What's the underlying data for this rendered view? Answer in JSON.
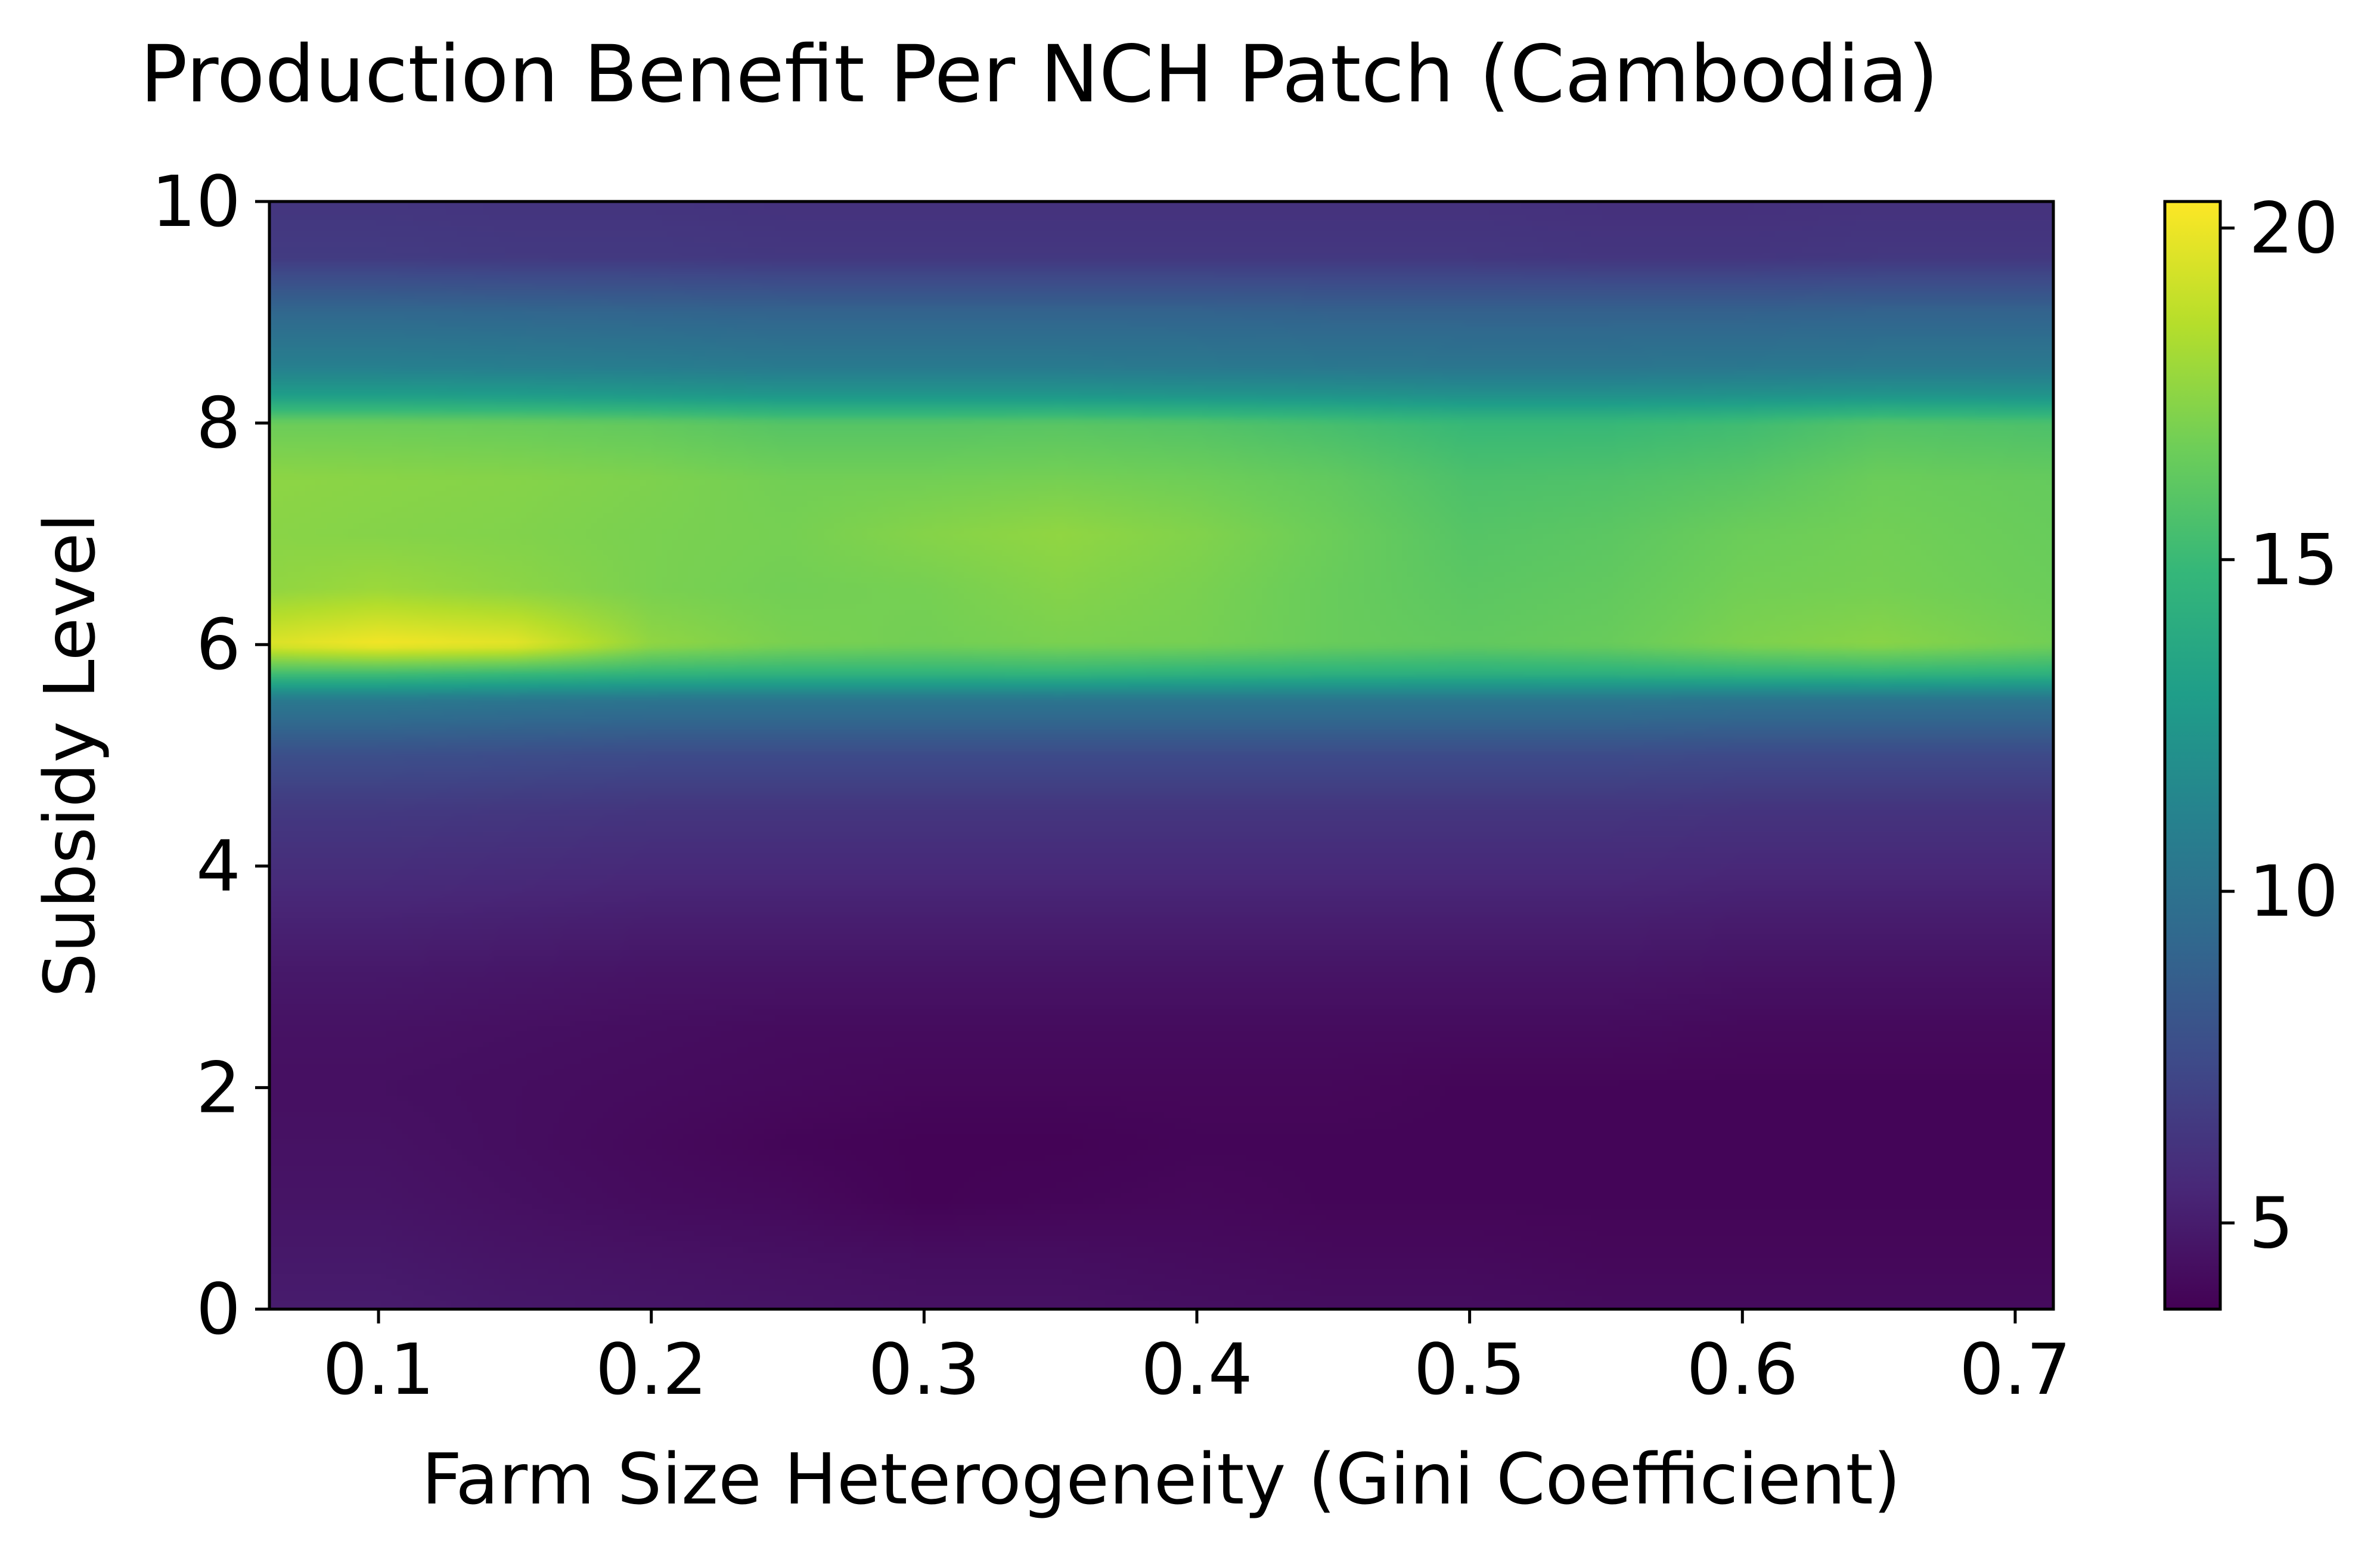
{
  "chart_data": {
    "type": "heatmap",
    "title": "Production Benefit Per NCH Patch (Cambodia)",
    "xlabel": "Farm Size Heterogeneity (Gini Coefficient)",
    "ylabel": "Subsidy Level",
    "colormap": "viridis",
    "xlim": [
      0.06,
      0.714
    ],
    "ylim": [
      0,
      10
    ],
    "x_ticks": [
      0.1,
      0.2,
      0.3,
      0.4,
      0.5,
      0.6,
      0.7
    ],
    "x_tick_labels": [
      "0.1",
      "0.2",
      "0.3",
      "0.4",
      "0.5",
      "0.6",
      "0.7"
    ],
    "y_ticks": [
      0,
      2,
      4,
      6,
      8,
      10
    ],
    "y_tick_labels": [
      "0",
      "2",
      "4",
      "6",
      "8",
      "10"
    ],
    "colorbar": {
      "range": [
        3.7,
        20.4
      ],
      "ticks": [
        5,
        10,
        15,
        20
      ],
      "tick_labels": [
        "5",
        "10",
        "15",
        "20"
      ]
    },
    "x": [
      0.06,
      0.1,
      0.15,
      0.2,
      0.25,
      0.3,
      0.35,
      0.4,
      0.45,
      0.5,
      0.55,
      0.6,
      0.65,
      0.714
    ],
    "y": [
      0,
      0.5,
      1,
      1.5,
      2,
      2.5,
      3,
      3.5,
      4,
      4.5,
      5,
      5.5,
      5.75,
      6,
      6.5,
      7,
      7.5,
      8,
      8.25,
      8.5,
      9,
      9.5,
      10
    ],
    "z": [
      [
        5.0,
        5.0,
        4.8,
        4.7,
        4.6,
        4.5,
        4.5,
        4.4,
        4.3,
        4.3,
        4.2,
        4.2,
        4.2,
        4.2
      ],
      [
        4.8,
        4.8,
        4.6,
        4.5,
        4.4,
        4.3,
        4.3,
        4.2,
        4.1,
        4.1,
        4.0,
        4.0,
        4.0,
        4.0
      ],
      [
        4.6,
        4.6,
        4.4,
        4.2,
        4.1,
        3.8,
        3.9,
        4.0,
        3.9,
        3.9,
        3.9,
        3.9,
        3.9,
        3.9
      ],
      [
        4.5,
        4.5,
        4.3,
        4.1,
        3.9,
        3.8,
        3.8,
        3.9,
        3.9,
        3.9,
        3.9,
        3.9,
        3.9,
        3.9
      ],
      [
        4.4,
        4.4,
        4.3,
        4.2,
        4.1,
        4.0,
        4.0,
        4.0,
        4.0,
        3.9,
        3.9,
        3.9,
        3.9,
        3.9
      ],
      [
        4.5,
        4.5,
        4.4,
        4.3,
        4.2,
        4.2,
        4.2,
        4.2,
        4.2,
        4.2,
        4.2,
        4.1,
        4.1,
        4.1
      ],
      [
        4.8,
        4.8,
        4.7,
        4.6,
        4.6,
        4.6,
        4.6,
        4.6,
        4.6,
        4.6,
        4.6,
        4.5,
        4.5,
        4.5
      ],
      [
        5.3,
        5.3,
        5.2,
        5.1,
        5.1,
        5.1,
        5.1,
        5.1,
        5.1,
        5.1,
        5.1,
        5.0,
        5.0,
        5.0
      ],
      [
        5.9,
        5.9,
        5.8,
        5.7,
        5.7,
        5.7,
        5.7,
        5.7,
        5.7,
        5.7,
        5.7,
        5.6,
        5.6,
        5.6
      ],
      [
        6.5,
        6.5,
        6.4,
        6.3,
        6.3,
        6.3,
        6.3,
        6.3,
        6.3,
        6.3,
        6.3,
        6.2,
        6.2,
        6.2
      ],
      [
        7.7,
        7.7,
        7.6,
        7.5,
        7.5,
        7.5,
        7.5,
        7.5,
        7.5,
        7.5,
        7.5,
        7.4,
        7.4,
        7.4
      ],
      [
        10.5,
        10.5,
        10.3,
        10.2,
        10.2,
        10.2,
        10.2,
        10.2,
        10.2,
        10.2,
        10.2,
        10.1,
        10.1,
        10.1
      ],
      [
        15.5,
        15.5,
        15.2,
        14.8,
        14.7,
        14.7,
        14.8,
        14.6,
        14.5,
        14.4,
        14.5,
        14.7,
        14.8,
        14.6
      ],
      [
        19.6,
        20.2,
        19.8,
        17.6,
        17.0,
        16.8,
        17.0,
        16.9,
        16.5,
        16.3,
        16.5,
        17.1,
        17.4,
        16.8
      ],
      [
        17.6,
        17.9,
        17.5,
        17.0,
        16.8,
        16.9,
        17.3,
        17.0,
        16.5,
        16.1,
        16.3,
        16.8,
        16.9,
        16.6
      ],
      [
        17.4,
        17.3,
        17.2,
        17.0,
        16.9,
        17.3,
        17.6,
        17.2,
        16.6,
        15.9,
        16.1,
        16.6,
        16.8,
        16.5
      ],
      [
        17.5,
        17.4,
        17.3,
        17.1,
        16.8,
        16.8,
        16.9,
        16.7,
        16.3,
        15.6,
        15.7,
        16.0,
        16.6,
        16.4
      ],
      [
        16.6,
        16.6,
        16.5,
        16.3,
        15.9,
        15.9,
        16.0,
        15.8,
        15.4,
        14.9,
        14.9,
        15.2,
        15.8,
        15.6
      ],
      [
        13.0,
        13.0,
        12.9,
        12.7,
        12.5,
        12.5,
        12.5,
        12.4,
        12.3,
        12.1,
        12.1,
        12.2,
        12.4,
        12.3
      ],
      [
        11.0,
        11.0,
        10.9,
        10.8,
        10.6,
        10.6,
        10.6,
        10.5,
        10.4,
        10.3,
        10.3,
        10.4,
        10.5,
        10.5
      ],
      [
        9.3,
        9.3,
        9.2,
        9.1,
        9.0,
        9.0,
        9.0,
        9.0,
        8.9,
        8.9,
        8.9,
        8.9,
        9.0,
        9.0
      ],
      [
        6.6,
        6.6,
        6.5,
        6.5,
        6.4,
        6.4,
        6.4,
        6.4,
        6.4,
        6.4,
        6.3,
        6.3,
        6.4,
        6.4
      ],
      [
        6.3,
        6.3,
        6.2,
        6.2,
        6.1,
        6.1,
        6.1,
        6.1,
        6.1,
        6.1,
        6.0,
        6.0,
        6.1,
        6.1
      ]
    ]
  }
}
